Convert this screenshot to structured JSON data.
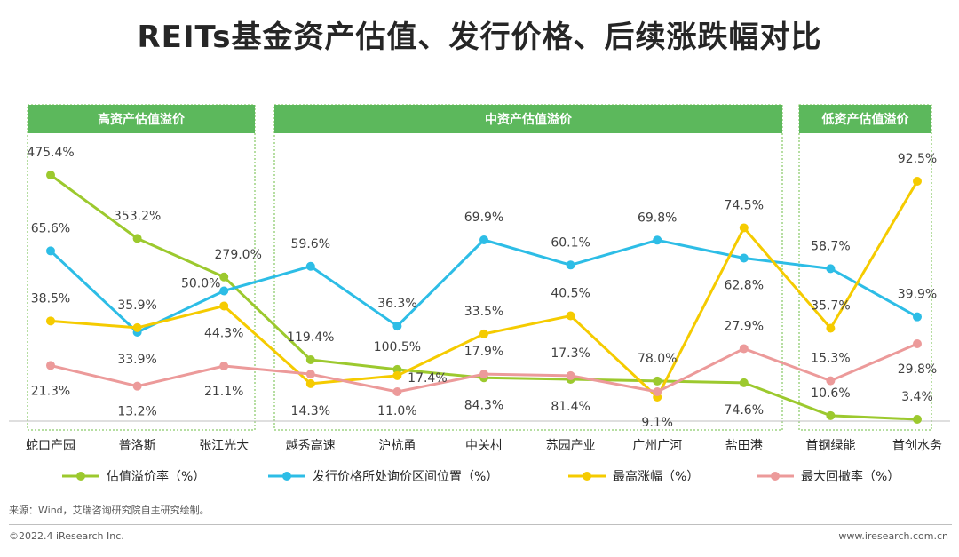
{
  "title": "REITs基金资产估值、发行价格、后续涨跌幅对比",
  "source": "来源：Wind，艾瑞咨询研究院自主研究绘制。",
  "copyright": "©2022.4 iResearch Inc.",
  "website": "www.iresearch.com.cn",
  "colors": {
    "green": "#9CC92E",
    "blue": "#2DBDE6",
    "yellow": "#F5CB00",
    "pink": "#EC9A9A",
    "header_green": "#5CB85C",
    "box_border": "#6DBE45"
  },
  "chart_data": {
    "type": "line",
    "title": "REITs基金资产估值、发行价格、后续涨跌幅对比",
    "categories": [
      "蛇口产园",
      "普洛斯",
      "张江光大",
      "越秀高速",
      "沪杭甬",
      "中关村",
      "苏园产业",
      "广州广河",
      "盐田港",
      "首钢绿能",
      "首创水务"
    ],
    "groups": [
      {
        "label": "高资产估值溢价",
        "categories": [
          "蛇口产园",
          "普洛斯",
          "张江光大"
        ]
      },
      {
        "label": "中资产估值溢价",
        "categories": [
          "越秀高速",
          "沪杭甬",
          "中关村",
          "苏园产业",
          "广州广河",
          "盐田港"
        ]
      },
      {
        "label": "低资产估值溢价",
        "categories": [
          "首钢绿能",
          "首创水务"
        ]
      }
    ],
    "series": [
      {
        "name": "估值溢价率（%）",
        "color": "#9CC92E",
        "values": [
          475.4,
          353.2,
          279.0,
          119.4,
          100.5,
          84.3,
          81.4,
          78.0,
          74.6,
          10.6,
          3.4
        ]
      },
      {
        "name": "发行价格所处询价区间位置（%）",
        "color": "#2DBDE6",
        "values": [
          65.6,
          33.9,
          50.0,
          59.6,
          36.3,
          69.9,
          60.1,
          69.8,
          62.8,
          58.7,
          39.9
        ]
      },
      {
        "name": "最高涨幅（%）",
        "color": "#F5CB00",
        "values": [
          38.5,
          35.9,
          44.3,
          14.3,
          17.4,
          33.5,
          40.5,
          9.1,
          74.5,
          35.7,
          92.5
        ]
      },
      {
        "name": "最大回撤率（%）",
        "color": "#EC9A9A",
        "values": [
          21.3,
          13.2,
          21.1,
          17.9,
          11.0,
          17.9,
          17.3,
          11.0,
          27.9,
          15.3,
          29.8
        ]
      }
    ],
    "labels": [
      [
        "475.4%",
        "353.2%",
        "279.0%",
        "119.4%",
        "100.5%",
        "84.3%",
        "81.4%",
        "78.0%",
        "74.6%",
        "10.6%",
        "3.4%"
      ],
      [
        "65.6%",
        "33.9%",
        "50.0%",
        "59.6%",
        "36.3%",
        "69.9%",
        "60.1%",
        "69.8%",
        "62.8%",
        "58.7%",
        "39.9%"
      ],
      [
        "38.5%",
        "35.9%",
        "44.3%",
        "14.3%",
        "17.4%",
        "33.5%",
        "40.5%",
        "9.1%",
        "74.5%",
        "35.7%",
        "92.5%"
      ],
      [
        "21.3%",
        "13.2%",
        "21.1%",
        "",
        "11.0%",
        "17.9%",
        "17.3%",
        "",
        "27.9%",
        "15.3%",
        "29.8%"
      ]
    ],
    "legend_position": "bottom"
  }
}
